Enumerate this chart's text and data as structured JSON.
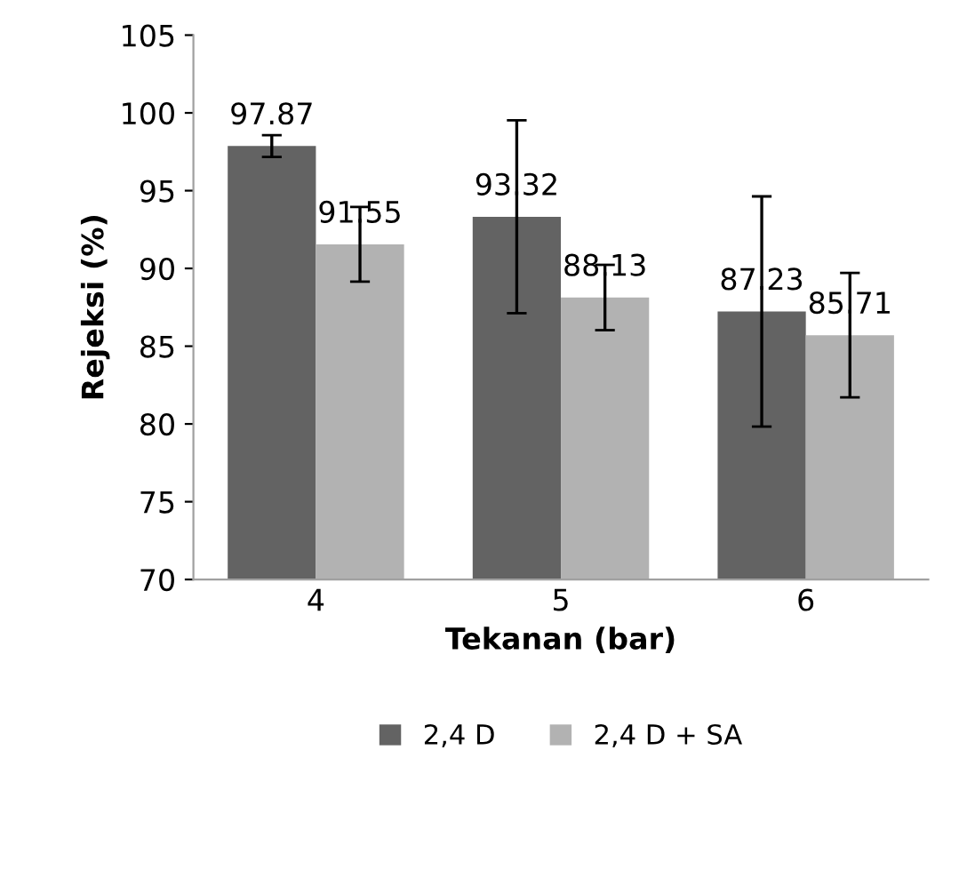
{
  "chart_data": {
    "type": "bar",
    "xlabel": "Tekanan (bar)",
    "ylabel": "Rejeksi (%)",
    "categories": [
      "4",
      "5",
      "6"
    ],
    "series": [
      {
        "name": "2,4 D",
        "color": "#636363",
        "values": [
          97.87,
          93.32,
          87.23
        ],
        "errors": [
          0.7,
          6.2,
          7.4
        ]
      },
      {
        "name": "2,4 D + SA",
        "color": "#b2b2b2",
        "values": [
          91.55,
          88.13,
          85.71
        ],
        "errors": [
          2.4,
          2.1,
          4.0
        ]
      }
    ],
    "ylim": [
      70,
      105
    ],
    "yticks": [
      70,
      75,
      80,
      85,
      90,
      95,
      100,
      105
    ],
    "data_labels": true,
    "grid": false,
    "legend": "bottom"
  }
}
